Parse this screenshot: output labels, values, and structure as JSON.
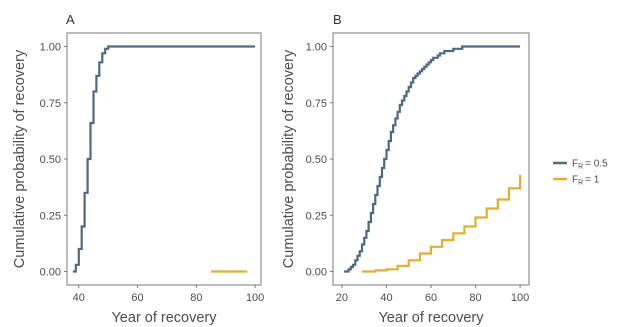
{
  "chart_data": [
    {
      "panel": "A",
      "type": "line",
      "step": true,
      "xlabel": "Year of recovery",
      "ylabel": "Cumulative probability of recovery",
      "xlim": [
        36,
        102
      ],
      "ylim": [
        -0.06,
        1.06
      ],
      "xticks": [
        40,
        60,
        80,
        100
      ],
      "yticks": [
        "0.00",
        "0.25",
        "0.50",
        "0.75",
        "1.00"
      ],
      "grid": false,
      "series": [
        {
          "name": "FR = 0.5",
          "color": "#4f6a80",
          "x": [
            38,
            39,
            40,
            41,
            42,
            43,
            44,
            45,
            46,
            47,
            48,
            49,
            50,
            51,
            52,
            100
          ],
          "y": [
            0.0,
            0.03,
            0.1,
            0.2,
            0.35,
            0.5,
            0.66,
            0.8,
            0.87,
            0.93,
            0.97,
            0.99,
            1.0,
            1.0,
            1.0,
            1.0
          ]
        },
        {
          "name": "FR = 1",
          "color": "#e3ad32",
          "x": [
            85,
            97
          ],
          "y": [
            0.0,
            0.003
          ]
        }
      ]
    },
    {
      "panel": "B",
      "type": "line",
      "step": true,
      "xlabel": "Year of recovery",
      "ylabel": "Cumulative probability of recovery",
      "xlim": [
        16,
        104
      ],
      "ylim": [
        -0.06,
        1.06
      ],
      "xticks": [
        20,
        40,
        60,
        80,
        100
      ],
      "yticks": [
        "0.00",
        "0.25",
        "0.50",
        "0.75",
        "1.00"
      ],
      "grid": false,
      "series": [
        {
          "name": "FR = 0.5",
          "color": "#4f6a80",
          "x": [
            21,
            22,
            23,
            24,
            25,
            26,
            27,
            28,
            29,
            30,
            31,
            32,
            33,
            34,
            35,
            36,
            37,
            38,
            39,
            40,
            41,
            42,
            43,
            44,
            45,
            46,
            47,
            48,
            49,
            50,
            51,
            52,
            53,
            54,
            55,
            56,
            57,
            58,
            59,
            60,
            61,
            62,
            63,
            64,
            65,
            66,
            68,
            70,
            72,
            74,
            76,
            78,
            80,
            85,
            90,
            100
          ],
          "y": [
            0.0,
            0.0,
            0.01,
            0.02,
            0.03,
            0.05,
            0.07,
            0.09,
            0.12,
            0.15,
            0.18,
            0.22,
            0.26,
            0.3,
            0.34,
            0.38,
            0.42,
            0.46,
            0.5,
            0.54,
            0.58,
            0.62,
            0.65,
            0.68,
            0.71,
            0.74,
            0.76,
            0.78,
            0.8,
            0.82,
            0.84,
            0.86,
            0.87,
            0.88,
            0.89,
            0.9,
            0.91,
            0.92,
            0.93,
            0.94,
            0.95,
            0.95,
            0.96,
            0.97,
            0.97,
            0.98,
            0.98,
            0.99,
            0.99,
            1.0,
            1.0,
            1.0,
            1.0,
            1.0,
            1.0,
            1.0
          ]
        },
        {
          "name": "FR = 1",
          "color": "#e3ad32",
          "x": [
            29,
            35,
            40,
            45,
            50,
            55,
            60,
            65,
            70,
            75,
            80,
            85,
            90,
            95,
            100
          ],
          "y": [
            0.0,
            0.005,
            0.01,
            0.025,
            0.05,
            0.08,
            0.11,
            0.14,
            0.17,
            0.2,
            0.24,
            0.28,
            0.32,
            0.37,
            0.43
          ]
        }
      ]
    }
  ],
  "legend": {
    "position": "right",
    "items": [
      {
        "main": "F",
        "sub": "R",
        "rest": "= 0.5",
        "color": "#4f6a80"
      },
      {
        "main": "F",
        "sub": "R",
        "rest": "= 1",
        "color": "#e3ad32"
      }
    ]
  }
}
